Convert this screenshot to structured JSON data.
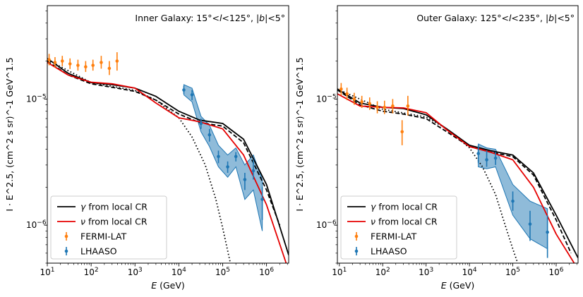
{
  "chart_data": [
    {
      "type": "line",
      "title": "Inner Galaxy: 15°<l<125°, |b|<5°",
      "annotation_parts": [
        "Inner Galaxy: 15°<",
        "l",
        "<125°, |",
        "b",
        "|<5°"
      ],
      "xlabel_parts": [
        "E",
        " (GeV)"
      ],
      "ylabel": "I · E^2.5, (cm^2 s sr)^-1 GeV^1.5",
      "xscale": "log",
      "yscale": "log",
      "xlim": [
        10,
        3200000
      ],
      "ylim": [
        5e-07,
        5.5e-05
      ],
      "xticks": [
        {
          "value": 10,
          "base": "10",
          "exp": "1"
        },
        {
          "value": 100,
          "base": "10",
          "exp": "2"
        },
        {
          "value": 1000,
          "base": "10",
          "exp": "3"
        },
        {
          "value": 10000,
          "base": "10",
          "exp": "4"
        },
        {
          "value": 100000,
          "base": "10",
          "exp": "5"
        },
        {
          "value": 1000000,
          "base": "10",
          "exp": "6"
        }
      ],
      "yticks": [
        {
          "value": 1e-06,
          "base": "10",
          "exp": "−6"
        },
        {
          "value": 1e-05,
          "base": "10",
          "exp": "−5"
        }
      ],
      "legend": {
        "position": "bottom-left",
        "entries": [
          {
            "label_parts": [
              "γ",
              " from local CR"
            ],
            "color": "#000000",
            "kind": "line"
          },
          {
            "label_parts": [
              "ν",
              " from local CR"
            ],
            "color": "#e60000",
            "kind": "line"
          },
          {
            "label": "FERMI-LAT",
            "color": "#ff7f0e",
            "kind": "errorbar"
          },
          {
            "label": "LHAASO",
            "color": "#1f77b4",
            "kind": "errorbar"
          }
        ]
      },
      "series": [
        {
          "name": "γ from local CR (total)",
          "color": "#000000",
          "style": "solid",
          "x": [
            10,
            30,
            100,
            300,
            1000,
            3000,
            10000,
            30000,
            100000,
            300000,
            1000000,
            3200000
          ],
          "y": [
            2.1e-05,
            1.6e-05,
            1.35e-05,
            1.3e-05,
            1.22e-05,
            1.05e-05,
            8e-06,
            6.8e-06,
            6.4e-06,
            4.8e-06,
            2.1e-06,
            5.8e-07
          ]
        },
        {
          "name": "γ component",
          "color": "#000000",
          "style": "dashed",
          "x": [
            10,
            30,
            100,
            300,
            1000,
            3000,
            10000,
            30000,
            100000,
            300000,
            1000000,
            2000000
          ],
          "y": [
            2e-05,
            1.55e-05,
            1.32e-05,
            1.24e-05,
            1.15e-05,
            9.8e-06,
            7.6e-06,
            6.5e-06,
            6.1e-06,
            4.5e-06,
            1.9e-06,
            1e-06
          ]
        },
        {
          "name": "γ component (cutoff)",
          "color": "#000000",
          "style": "dotted",
          "x": [
            10,
            100,
            1000,
            3000,
            10000,
            20000,
            40000,
            70000,
            100000,
            150000
          ],
          "y": [
            2.05e-05,
            1.35e-05,
            1.17e-05,
            9.8e-06,
            7.1e-06,
            5e-06,
            3e-06,
            1.6e-06,
            9.5e-07,
            5e-07
          ]
        },
        {
          "name": "ν from local CR",
          "color": "#e60000",
          "style": "solid",
          "x": [
            10,
            30,
            100,
            300,
            1000,
            3000,
            10000,
            30000,
            100000,
            300000,
            1000000,
            2800000
          ],
          "y": [
            1.95e-05,
            1.55e-05,
            1.36e-05,
            1.32e-05,
            1.22e-05,
            9.3e-06,
            7.1e-06,
            6.6e-06,
            5.8e-06,
            3.6e-06,
            1.45e-06,
            5e-07
          ]
        }
      ],
      "fermi": {
        "x": [
          11,
          15,
          22,
          33,
          50,
          75,
          110,
          170,
          260,
          390
        ],
        "y": [
          2.05e-05,
          1.95e-05,
          2e-05,
          1.9e-05,
          1.85e-05,
          1.8e-05,
          1.85e-05,
          1.95e-05,
          1.75e-05,
          2e-05
        ],
        "lo": [
          1.85e-05,
          1.78e-05,
          1.82e-05,
          1.73e-05,
          1.68e-05,
          1.64e-05,
          1.68e-05,
          1.74e-05,
          1.55e-05,
          1.68e-05
        ],
        "hi": [
          2.28e-05,
          2.15e-05,
          2.2e-05,
          2.1e-05,
          2.05e-05,
          2e-05,
          2.05e-05,
          2.2e-05,
          2e-05,
          2.35e-05
        ]
      },
      "lhaaso": {
        "x": [
          13000,
          20000,
          32000,
          50000,
          80000,
          130000,
          200000,
          320000,
          500000,
          800000
        ],
        "y": [
          1.18e-05,
          1.08e-05,
          6.4e-06,
          5.2e-06,
          3.5e-06,
          2.9e-06,
          3.5e-06,
          2.3e-06,
          2.7e-06,
          1.6e-06
        ],
        "lo": [
          1.1e-05,
          9.8e-06,
          5.8e-06,
          4.6e-06,
          3.1e-06,
          2.6e-06,
          3.2e-06,
          1.9e-06,
          2.3e-06,
          1.1e-06
        ],
        "hi": [
          1.27e-05,
          1.18e-05,
          7e-06,
          5.8e-06,
          3.9e-06,
          3.2e-06,
          3.8e-06,
          2.6e-06,
          3.3e-06,
          2e-06
        ],
        "band_upper": [
          1.3e-05,
          1.22e-05,
          7.3e-06,
          6.2e-06,
          4.3e-06,
          3.6e-06,
          4.1e-06,
          3e-06,
          3.6e-06,
          2.3e-06
        ],
        "band_lower": [
          1.08e-05,
          9.5e-06,
          5.5e-06,
          4.2e-06,
          2.9e-06,
          2.4e-06,
          2.9e-06,
          1.6e-06,
          1.9e-06,
          9e-07
        ]
      }
    },
    {
      "type": "line",
      "title": "Outer Galaxy: 125°<l<235°, |b|<5°",
      "annotation_parts": [
        "Outer Galaxy: 125°<",
        "l",
        "<235°, |",
        "b",
        "|<5°"
      ],
      "xlabel_parts": [
        "E",
        " (GeV)"
      ],
      "ylabel": "I · E^2.5, (cm^2 s sr)^-1 GeV^1.5",
      "xscale": "log",
      "yscale": "log",
      "xlim": [
        9,
        3200000
      ],
      "ylim": [
        5e-07,
        5.5e-05
      ],
      "xticks": [
        {
          "value": 10,
          "base": "10",
          "exp": "1"
        },
        {
          "value": 100,
          "base": "10",
          "exp": "2"
        },
        {
          "value": 1000,
          "base": "10",
          "exp": "3"
        },
        {
          "value": 10000,
          "base": "10",
          "exp": "4"
        },
        {
          "value": 100000,
          "base": "10",
          "exp": "5"
        },
        {
          "value": 1000000,
          "base": "10",
          "exp": "6"
        }
      ],
      "yticks": [
        {
          "value": 1e-06,
          "base": "10",
          "exp": "−6"
        },
        {
          "value": 1e-05,
          "base": "10",
          "exp": "−5"
        }
      ],
      "legend": {
        "position": "bottom-left",
        "entries": [
          {
            "label_parts": [
              "γ",
              " from local CR"
            ],
            "color": "#000000",
            "kind": "line"
          },
          {
            "label_parts": [
              "ν",
              " from local CR"
            ],
            "color": "#e60000",
            "kind": "line"
          },
          {
            "label": "FERMI-LAT",
            "color": "#ff7f0e",
            "kind": "errorbar"
          },
          {
            "label": "LHAASO",
            "color": "#1f77b4",
            "kind": "errorbar"
          }
        ]
      },
      "series": [
        {
          "name": "γ from local CR (total)",
          "color": "#000000",
          "style": "solid",
          "x": [
            9,
            30,
            100,
            300,
            1000,
            3000,
            10000,
            30000,
            100000,
            300000,
            1000000,
            3200000
          ],
          "y": [
            1.2e-05,
            9.3e-06,
            8.6e-06,
            8.4e-06,
            7.5e-06,
            5.8e-06,
            4.3e-06,
            3.9e-06,
            3.6e-06,
            2.6e-06,
            1.2e-06,
            5.5e-07
          ]
        },
        {
          "name": "γ component",
          "color": "#000000",
          "style": "dashed",
          "x": [
            9,
            30,
            100,
            300,
            1000,
            3000,
            10000,
            30000,
            100000,
            300000,
            1000000,
            2200000
          ],
          "y": [
            1.18e-05,
            9e-06,
            8e-06,
            7.6e-06,
            7e-06,
            5.5e-06,
            4.2e-06,
            3.8e-06,
            3.5e-06,
            2.5e-06,
            1.1e-06,
            6e-07
          ]
        },
        {
          "name": "γ component (cutoff)",
          "color": "#000000",
          "style": "dotted",
          "x": [
            9,
            100,
            1000,
            3000,
            10000,
            20000,
            40000,
            70000,
            100000,
            130000
          ],
          "y": [
            1.2e-05,
            8.3e-06,
            7.2e-06,
            5.8e-06,
            4.1e-06,
            2.9e-06,
            1.75e-06,
            9.5e-07,
            6.5e-07,
            5e-07
          ]
        },
        {
          "name": "ν from local CR",
          "color": "#e60000",
          "style": "solid",
          "x": [
            9,
            30,
            100,
            300,
            1000,
            3000,
            10000,
            30000,
            100000,
            300000,
            1000000,
            2600000
          ],
          "y": [
            1.1e-05,
            8.8e-06,
            8.6e-06,
            8.5e-06,
            7.8e-06,
            5.7e-06,
            4.2e-06,
            3.8e-06,
            3.3e-06,
            2e-06,
            8.5e-07,
            5e-07
          ]
        }
      ],
      "fermi": {
        "x": [
          11,
          15,
          22,
          33,
          50,
          75,
          110,
          170,
          280,
          380
        ],
        "y": [
          1.2e-05,
          1.1e-05,
          1e-05,
          9.5e-06,
          9.2e-06,
          8.6e-06,
          8.6e-06,
          8.8e-06,
          5.5e-06,
          8.8e-06
        ],
        "lo": [
          1.07e-05,
          9.8e-06,
          9e-06,
          8.5e-06,
          8.2e-06,
          7.7e-06,
          7.6e-06,
          7.7e-06,
          4.3e-06,
          7.4e-06
        ],
        "hi": [
          1.34e-05,
          1.23e-05,
          1.12e-05,
          1.06e-05,
          1.03e-05,
          9.6e-06,
          9.7e-06,
          1e-05,
          6.8e-06,
          1.06e-05
        ]
      },
      "lhaaso": {
        "x": [
          16000,
          25000,
          40000,
          100000,
          250000,
          630000
        ],
        "y": [
          3.7e-06,
          3.3e-06,
          3.4e-06,
          1.55e-06,
          1.02e-06,
          8.8e-07
        ],
        "lo": [
          3.1e-06,
          2.9e-06,
          3e-06,
          1.3e-06,
          7.5e-07,
          5.5e-07
        ],
        "hi": [
          4.3e-06,
          3.9e-06,
          3.8e-06,
          1.85e-06,
          1.3e-06,
          1.2e-06
        ],
        "band_upper": [
          4.4e-06,
          4.1e-06,
          4e-06,
          2.1e-06,
          1.55e-06,
          1.35e-06
        ],
        "band_lower": [
          2.9e-06,
          2.8e-06,
          2.9e-06,
          1.2e-06,
          7.8e-07,
          6.5e-07
        ]
      }
    }
  ]
}
